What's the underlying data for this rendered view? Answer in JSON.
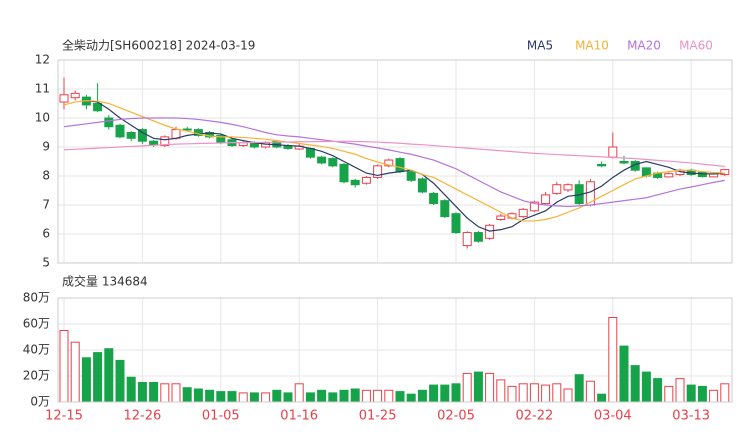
{
  "chart_data": [
    {
      "type": "candlestick",
      "title": "全柴动力[SH600218] 2024-03-19",
      "up_color": "#e8414b",
      "down_color": "#17a34a",
      "open": [
        10.55,
        10.7,
        10.72,
        10.5,
        10.0,
        9.75,
        9.5,
        9.6,
        9.2,
        9.05,
        9.3,
        9.62,
        9.6,
        9.5,
        9.4,
        9.25,
        9.05,
        9.15,
        9.0,
        9.2,
        9.05,
        8.93,
        8.95,
        8.65,
        8.6,
        8.4,
        7.85,
        7.75,
        7.95,
        8.35,
        8.6,
        8.15,
        7.9,
        7.4,
        7.15,
        6.7,
        5.6,
        6.05,
        5.85,
        6.5,
        6.55,
        6.6,
        6.8,
        7.05,
        7.4,
        7.52,
        7.7,
        7.0,
        8.4,
        8.65,
        8.5,
        8.5,
        8.28,
        8.1,
        7.97,
        8.05,
        8.2,
        8.12,
        7.97,
        8.05
      ],
      "high": [
        11.4,
        10.95,
        10.8,
        11.2,
        10.1,
        9.8,
        9.55,
        9.65,
        9.25,
        9.4,
        9.7,
        9.7,
        9.65,
        9.55,
        9.45,
        9.3,
        9.2,
        9.2,
        9.2,
        9.25,
        9.1,
        9.1,
        8.98,
        8.7,
        8.65,
        8.45,
        7.9,
        8.0,
        8.4,
        8.6,
        8.65,
        8.2,
        7.95,
        7.45,
        7.2,
        6.75,
        6.1,
        6.1,
        6.35,
        6.7,
        6.75,
        6.9,
        7.15,
        7.45,
        7.8,
        7.75,
        7.85,
        7.9,
        8.5,
        9.5,
        8.7,
        8.55,
        8.3,
        8.15,
        8.12,
        8.25,
        8.25,
        8.15,
        8.1,
        8.25
      ],
      "low": [
        10.3,
        10.6,
        10.3,
        10.2,
        9.6,
        9.3,
        9.2,
        9.1,
        9.0,
        9.0,
        9.25,
        9.55,
        9.35,
        9.3,
        9.1,
        9.0,
        9.0,
        8.95,
        8.95,
        8.95,
        8.9,
        8.9,
        8.6,
        8.4,
        8.3,
        7.75,
        7.6,
        7.7,
        7.9,
        8.3,
        8.1,
        7.8,
        7.4,
        7.0,
        6.55,
        6.0,
        5.5,
        5.7,
        5.8,
        6.45,
        6.5,
        6.55,
        6.75,
        7.0,
        7.35,
        7.45,
        7.0,
        6.95,
        8.3,
        8.6,
        8.4,
        8.15,
        7.95,
        7.9,
        7.95,
        8.0,
        8.0,
        7.95,
        7.95,
        8.0
      ],
      "close": [
        10.8,
        10.85,
        10.45,
        10.25,
        9.7,
        9.35,
        9.3,
        9.2,
        9.07,
        9.35,
        9.6,
        9.6,
        9.4,
        9.35,
        9.15,
        9.05,
        9.15,
        9.0,
        9.15,
        9.0,
        8.95,
        9.03,
        8.65,
        8.45,
        8.35,
        7.8,
        7.7,
        7.95,
        8.35,
        8.55,
        8.15,
        7.85,
        7.45,
        7.05,
        6.6,
        6.05,
        6.05,
        5.75,
        6.3,
        6.62,
        6.7,
        6.85,
        7.1,
        7.35,
        7.7,
        7.7,
        7.05,
        7.8,
        8.35,
        9.0,
        8.45,
        8.2,
        8.0,
        7.95,
        8.08,
        8.2,
        8.05,
        7.98,
        8.07,
        8.22
      ],
      "series": [
        {
          "name": "MA5",
          "color": "#2b3a67",
          "values": [
            null,
            null,
            10.6,
            10.55,
            10.3,
            10.0,
            9.75,
            9.5,
            9.3,
            9.25,
            9.3,
            9.4,
            9.45,
            9.48,
            9.45,
            9.3,
            9.22,
            9.15,
            9.1,
            9.08,
            9.05,
            9.03,
            8.95,
            8.85,
            8.7,
            8.5,
            8.3,
            8.1,
            8.02,
            8.1,
            8.15,
            8.2,
            8.05,
            7.75,
            7.35,
            6.95,
            6.55,
            6.25,
            6.1,
            6.15,
            6.25,
            6.5,
            6.65,
            6.8,
            7.1,
            7.3,
            7.35,
            7.45,
            7.65,
            7.95,
            8.2,
            8.4,
            8.5,
            8.4,
            8.3,
            8.15,
            8.1,
            8.08,
            8.07,
            8.1
          ]
        },
        {
          "name": "MA10",
          "color": "#f5b335",
          "values": [
            10.45,
            10.55,
            10.6,
            10.58,
            10.5,
            10.35,
            10.2,
            10.05,
            9.9,
            9.75,
            9.62,
            9.55,
            9.45,
            9.38,
            9.35,
            9.35,
            9.33,
            9.3,
            9.27,
            9.22,
            9.17,
            9.12,
            9.07,
            9.02,
            8.95,
            8.85,
            8.75,
            8.6,
            8.48,
            8.38,
            8.3,
            8.2,
            8.05,
            7.95,
            7.75,
            7.55,
            7.35,
            7.15,
            6.95,
            6.75,
            6.55,
            6.45,
            6.45,
            6.5,
            6.6,
            6.75,
            6.9,
            7.1,
            7.3,
            7.5,
            7.7,
            7.9,
            8.0,
            8.1,
            8.15,
            8.2,
            8.2,
            8.15,
            8.12,
            8.1
          ]
        },
        {
          "name": "MA20",
          "color": "#b573dc",
          "values": [
            9.7,
            9.75,
            9.8,
            9.85,
            9.9,
            9.95,
            9.98,
            10.0,
            10.0,
            10.0,
            10.0,
            9.98,
            9.95,
            9.9,
            9.85,
            9.78,
            9.7,
            9.6,
            9.5,
            9.42,
            9.38,
            9.35,
            9.3,
            9.25,
            9.2,
            9.15,
            9.1,
            9.03,
            8.97,
            8.9,
            8.82,
            8.75,
            8.65,
            8.55,
            8.4,
            8.25,
            8.05,
            7.85,
            7.65,
            7.45,
            7.3,
            7.15,
            7.05,
            7.0,
            6.97,
            6.95,
            6.97,
            7.0,
            7.05,
            7.1,
            7.15,
            7.2,
            7.25,
            7.35,
            7.45,
            7.55,
            7.62,
            7.7,
            7.78,
            7.85
          ]
        },
        {
          "name": "MA60",
          "color": "#ec92c8",
          "values": [
            8.9,
            8.92,
            8.94,
            8.96,
            8.98,
            9.0,
            9.02,
            9.04,
            9.06,
            9.08,
            9.1,
            9.11,
            9.12,
            9.13,
            9.14,
            9.15,
            9.15,
            9.16,
            9.16,
            9.17,
            9.17,
            9.18,
            9.18,
            9.19,
            9.19,
            9.2,
            9.19,
            9.18,
            9.17,
            9.15,
            9.13,
            9.1,
            9.08,
            9.05,
            9.02,
            8.99,
            8.96,
            8.93,
            8.9,
            8.87,
            8.84,
            8.81,
            8.78,
            8.76,
            8.74,
            8.72,
            8.7,
            8.68,
            8.66,
            8.64,
            8.62,
            8.6,
            8.57,
            8.54,
            8.51,
            8.48,
            8.45,
            8.41,
            8.37,
            8.33
          ]
        }
      ],
      "ylim": [
        5,
        12
      ],
      "yticks": [
        5,
        6,
        7,
        8,
        9,
        10,
        11,
        12
      ],
      "grid": true
    },
    {
      "type": "bar",
      "title": "成交量 134684",
      "categories": [
        "12-15",
        null,
        null,
        null,
        null,
        null,
        null,
        "12-26",
        null,
        null,
        null,
        null,
        null,
        null,
        "01-05",
        null,
        null,
        null,
        null,
        null,
        null,
        "01-16",
        null,
        null,
        null,
        null,
        null,
        null,
        "01-25",
        null,
        null,
        null,
        null,
        null,
        null,
        "02-05",
        null,
        null,
        null,
        null,
        null,
        null,
        "02-22",
        null,
        null,
        null,
        null,
        null,
        null,
        "03-04",
        null,
        null,
        null,
        null,
        null,
        null,
        "03-13",
        null,
        null,
        null
      ],
      "values": [
        55,
        46,
        34,
        38,
        41,
        32,
        19,
        15,
        15,
        14,
        14,
        11,
        10,
        9,
        8,
        8,
        7,
        7,
        7,
        9,
        7,
        14,
        7,
        9,
        7,
        9,
        10,
        9,
        9,
        9,
        8,
        6,
        9,
        13,
        13,
        14,
        22,
        23,
        22,
        17,
        12,
        14,
        14,
        13,
        14,
        10,
        21,
        16,
        6,
        65,
        43,
        28,
        23,
        18,
        12,
        18,
        13,
        12,
        9,
        14
      ],
      "ylim": [
        0,
        80
      ],
      "yticks": [
        {
          "value": 0,
          "label": "0万"
        },
        {
          "value": 20,
          "label": "20万"
        },
        {
          "value": 40,
          "label": "40万"
        },
        {
          "value": 60,
          "label": "60万"
        },
        {
          "value": 80,
          "label": "80万"
        }
      ],
      "grid": true
    }
  ]
}
